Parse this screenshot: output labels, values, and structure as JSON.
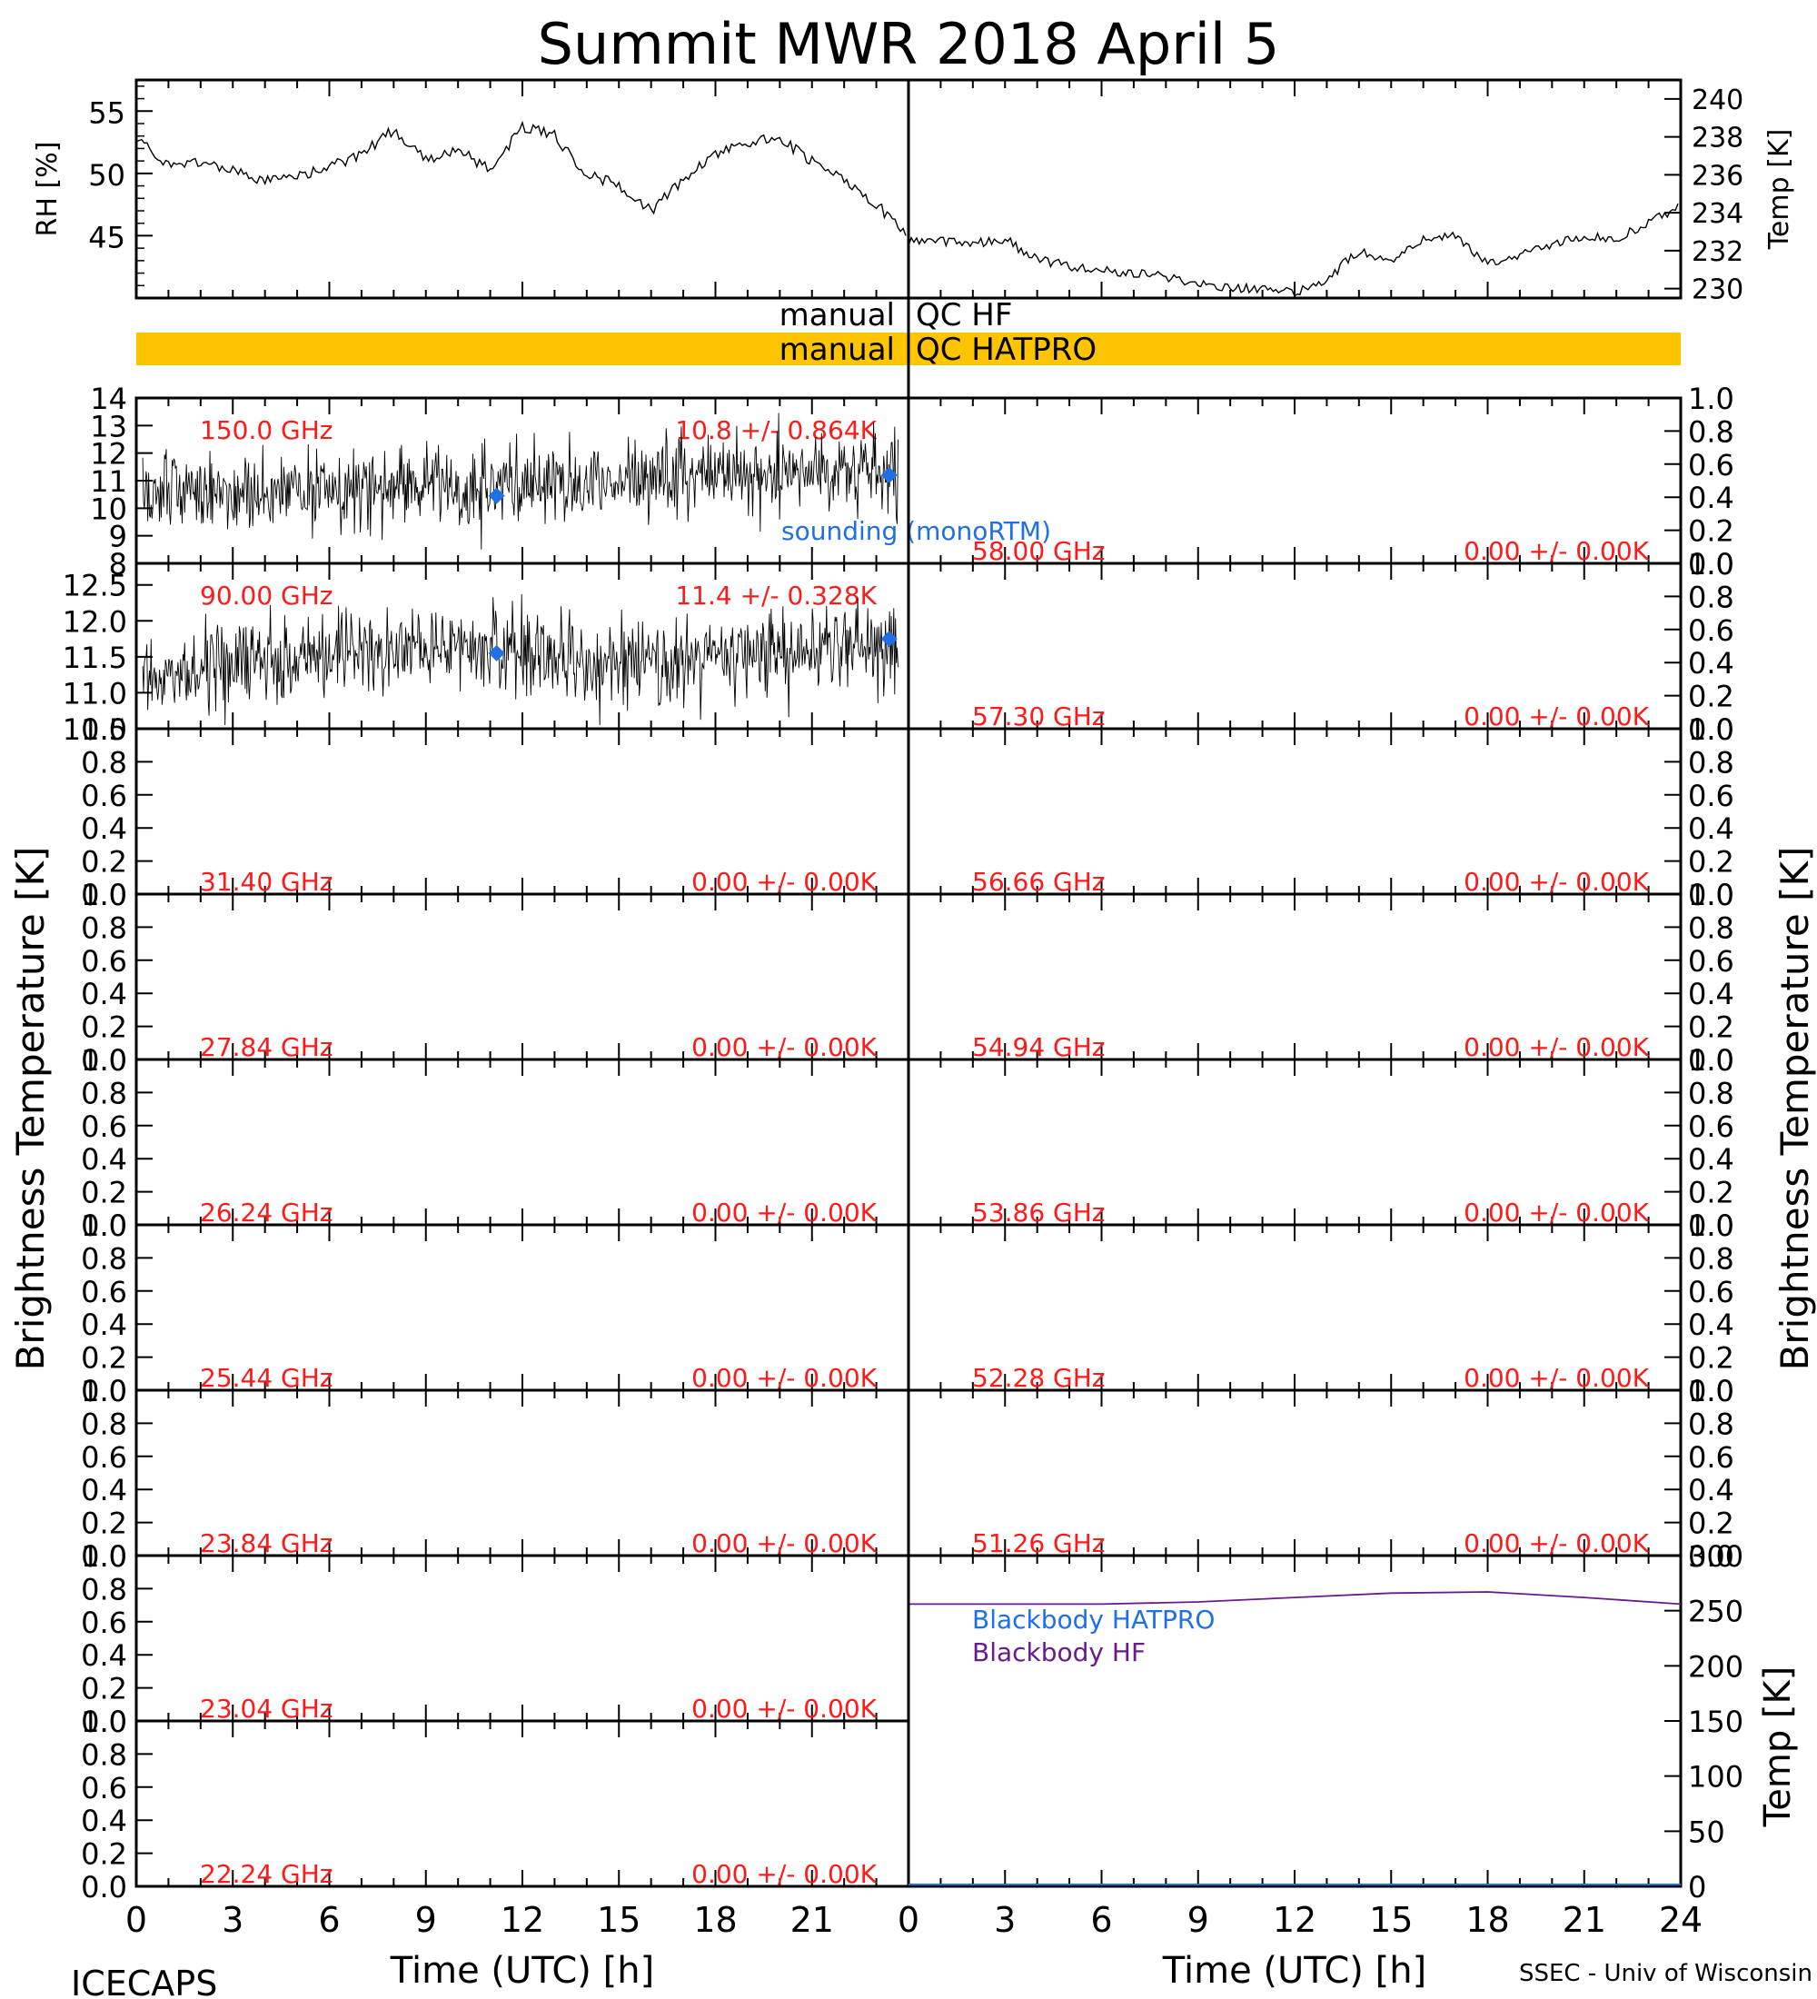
{
  "title": "Summit MWR 2018 April  5",
  "footer": {
    "left": "ICECAPS",
    "right": "SSEC - Univ of Wisconsin",
    "xlabel_left": "Time (UTC) [h]",
    "xlabel_right": "Time (UTC) [h]"
  },
  "colors": {
    "red_label": "#ff1a1a",
    "sounding": "#1f6fe6",
    "qc_bar": "#ffc400",
    "blackbody_hatpro": "#1f6fe6",
    "blackbody_hf": "#6a1a8c",
    "trace": "#000000"
  },
  "qc": {
    "hf": {
      "left": "manual",
      "right": "QC HF"
    },
    "hatpro": {
      "left": "manual",
      "right": "QC HATPRO"
    }
  },
  "left_ylabel": "Brightness Temperature [K]",
  "right_ylabel": "Brightness Temperature [K]",
  "chart_data": [
    {
      "type": "line",
      "name": "RH",
      "ylabel": "RH [%]",
      "xlim": [
        0,
        12
      ],
      "ylim": [
        40,
        57.5
      ],
      "yticks": [
        45,
        50,
        55
      ],
      "x": [
        0,
        0.5,
        1,
        1.5,
        2,
        2.5,
        3,
        3.5,
        4,
        4.5,
        5,
        5.5,
        6,
        6.5,
        7,
        7.5,
        8,
        8.5,
        9,
        9.5,
        10,
        10.5,
        11,
        11.5,
        12
      ],
      "values": [
        53,
        50.5,
        51,
        50.2,
        49.3,
        49.8,
        50.5,
        51.5,
        53.5,
        51,
        52,
        50.2,
        53.8,
        53,
        50,
        49,
        47,
        49.5,
        51.5,
        52.5,
        52.8,
        51,
        49.5,
        47.5,
        45
      ]
    },
    {
      "type": "line",
      "name": "Temp",
      "ylabel": "Temp [K]",
      "xlim": [
        12,
        24
      ],
      "ylim": [
        229.5,
        241
      ],
      "yticks": [
        230,
        232,
        234,
        236,
        238,
        240
      ],
      "x": [
        12,
        12.5,
        13,
        13.5,
        14,
        14.5,
        15,
        15.5,
        16,
        16.5,
        17,
        17.5,
        18,
        18.5,
        19,
        19.5,
        20,
        20.5,
        21,
        21.5,
        22,
        22.5,
        23,
        23.5,
        24
      ],
      "values": [
        232.5,
        232.5,
        232.4,
        232.6,
        231.5,
        231.2,
        231,
        230.8,
        230.6,
        230.2,
        230.1,
        229.9,
        229.8,
        230.5,
        232,
        231.5,
        232.6,
        232.8,
        231.3,
        231.8,
        232.3,
        232.8,
        232.6,
        233.5,
        234.3
      ]
    }
  ],
  "left_panels": [
    {
      "freq": "150.0 GHz",
      "stat": "10.8 +/- 0.864K",
      "ylim": [
        8,
        14
      ],
      "yticks": [
        "8",
        "9",
        "10",
        "11",
        "12",
        "13",
        "14"
      ]
    },
    {
      "freq": "90.00 GHz",
      "stat": "11.4 +/- 0.328K",
      "ylim": [
        10.5,
        12.8
      ],
      "yticks": [
        "10.5",
        "11.0",
        "11.5",
        "12.0",
        "12.5"
      ]
    },
    {
      "freq": "31.40 GHz",
      "stat": "0.00 +/- 0.00K",
      "ylim": [
        0,
        1
      ],
      "yticks": [
        "0.0",
        "0.2",
        "0.4",
        "0.6",
        "0.8",
        "1.0"
      ]
    },
    {
      "freq": "27.84 GHz",
      "stat": "0.00 +/- 0.00K",
      "ylim": [
        0,
        1
      ],
      "yticks": [
        "0.0",
        "0.2",
        "0.4",
        "0.6",
        "0.8",
        "1.0"
      ]
    },
    {
      "freq": "26.24 GHz",
      "stat": "0.00 +/- 0.00K",
      "ylim": [
        0,
        1
      ],
      "yticks": [
        "0.0",
        "0.2",
        "0.4",
        "0.6",
        "0.8",
        "1.0"
      ]
    },
    {
      "freq": "25.44 GHz",
      "stat": "0.00 +/- 0.00K",
      "ylim": [
        0,
        1
      ],
      "yticks": [
        "0.0",
        "0.2",
        "0.4",
        "0.6",
        "0.8",
        "1.0"
      ]
    },
    {
      "freq": "23.84 GHz",
      "stat": "0.00 +/- 0.00K",
      "ylim": [
        0,
        1
      ],
      "yticks": [
        "0.0",
        "0.2",
        "0.4",
        "0.6",
        "0.8",
        "1.0"
      ]
    },
    {
      "freq": "23.04 GHz",
      "stat": "0.00 +/- 0.00K",
      "ylim": [
        0,
        1
      ],
      "yticks": [
        "0.0",
        "0.2",
        "0.4",
        "0.6",
        "0.8",
        "1.0"
      ]
    },
    {
      "freq": "22.24 GHz",
      "stat": "0.00 +/- 0.00K",
      "ylim": [
        0,
        1
      ],
      "yticks": [
        "0.0",
        "0.2",
        "0.4",
        "0.6",
        "0.8",
        "1.0"
      ]
    }
  ],
  "right_panels": [
    {
      "freq": "58.00 GHz",
      "stat": "0.00 +/- 0.00K",
      "ylim": [
        0,
        1
      ],
      "yticks": [
        "0.0",
        "0.2",
        "0.4",
        "0.6",
        "0.8",
        "1.0"
      ]
    },
    {
      "freq": "57.30 GHz",
      "stat": "0.00 +/- 0.00K",
      "ylim": [
        0,
        1
      ],
      "yticks": [
        "0.0",
        "0.2",
        "0.4",
        "0.6",
        "0.8",
        "1.0"
      ]
    },
    {
      "freq": "56.66 GHz",
      "stat": "0.00 +/- 0.00K",
      "ylim": [
        0,
        1
      ],
      "yticks": [
        "0.0",
        "0.2",
        "0.4",
        "0.6",
        "0.8",
        "1.0"
      ]
    },
    {
      "freq": "54.94 GHz",
      "stat": "0.00 +/- 0.00K",
      "ylim": [
        0,
        1
      ],
      "yticks": [
        "0.0",
        "0.2",
        "0.4",
        "0.6",
        "0.8",
        "1.0"
      ]
    },
    {
      "freq": "53.86 GHz",
      "stat": "0.00 +/- 0.00K",
      "ylim": [
        0,
        1
      ],
      "yticks": [
        "0.0",
        "0.2",
        "0.4",
        "0.6",
        "0.8",
        "1.0"
      ]
    },
    {
      "freq": "52.28 GHz",
      "stat": "0.00 +/- 0.00K",
      "ylim": [
        0,
        1
      ],
      "yticks": [
        "0.0",
        "0.2",
        "0.4",
        "0.6",
        "0.8",
        "1.0"
      ]
    },
    {
      "freq": "51.26 GHz",
      "stat": "0.00 +/- 0.00K",
      "ylim": [
        0,
        1
      ],
      "yticks": [
        "0.0",
        "0.2",
        "0.4",
        "0.6",
        "0.8",
        "1.0"
      ]
    }
  ],
  "sounding_label": "sounding (monoRTM)",
  "sounding_points": [
    {
      "panel": 0,
      "x": 11.2,
      "y": 10.45
    },
    {
      "panel": 0,
      "x": 23.4,
      "y": 11.2
    },
    {
      "panel": 1,
      "x": 11.2,
      "y": 11.55
    },
    {
      "panel": 1,
      "x": 23.4,
      "y": 11.75
    }
  ],
  "blackbody": {
    "ylabel": "Temp [K]",
    "ylim": [
      0,
      300
    ],
    "yticks": [
      "0",
      "50",
      "100",
      "150",
      "200",
      "250",
      "300"
    ],
    "legend": [
      "Blackbody HATPRO",
      "Blackbody HF"
    ],
    "x": [
      0,
      3,
      6,
      9,
      12,
      15,
      18,
      21,
      24
    ],
    "values": [
      256,
      256,
      256,
      258,
      262,
      266,
      267,
      262,
      256
    ]
  },
  "time_ticks": [
    "0",
    "3",
    "6",
    "9",
    "12",
    "15",
    "18",
    "21",
    "0",
    "3",
    "6",
    "9",
    "12",
    "15",
    "18",
    "21",
    "24"
  ],
  "trace_stats": [
    {
      "mean": 10.8,
      "sd": 0.864
    },
    {
      "mean": 11.4,
      "sd": 0.328
    }
  ]
}
